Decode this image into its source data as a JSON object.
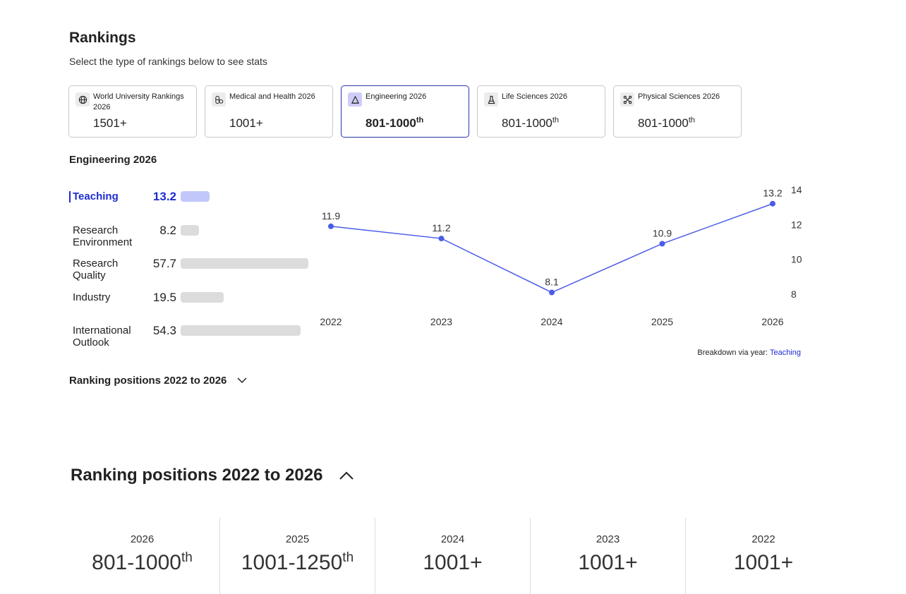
{
  "header": {
    "title": "Rankings",
    "subtitle": "Select the type of rankings below to see stats"
  },
  "cards": [
    {
      "name": "World University Rankings 2026",
      "value": "1501+",
      "sup": "",
      "icon": "globe-icon",
      "active": false
    },
    {
      "name": "Medical and Health 2026",
      "value": "1001+",
      "sup": "",
      "icon": "pill-icon",
      "active": false
    },
    {
      "name": "Engineering 2026",
      "value": "801-1000",
      "sup": "th",
      "icon": "triangle-ruler-icon",
      "active": true
    },
    {
      "name": "Life Sciences 2026",
      "value": "801-1000",
      "sup": "th",
      "icon": "flask-icon",
      "active": false
    },
    {
      "name": "Physical Sciences 2026",
      "value": "801-1000",
      "sup": "th",
      "icon": "atom-icon",
      "active": false
    }
  ],
  "section": {
    "title": "Engineering 2026"
  },
  "metrics": [
    {
      "label": "Teaching",
      "value": "13.2",
      "score": 13.2,
      "active": true
    },
    {
      "label": "Research\nEnvironment",
      "value": "8.2",
      "score": 8.2,
      "active": false
    },
    {
      "label": "Research\nQuality",
      "value": "57.7",
      "score": 57.7,
      "active": false
    },
    {
      "label": "Industry",
      "value": "19.5",
      "score": 19.5,
      "active": false
    },
    {
      "label": "International\nOutlook",
      "value": "54.3",
      "score": 54.3,
      "active": false
    }
  ],
  "chart_data": {
    "type": "line",
    "x": [
      "2022",
      "2023",
      "2024",
      "2025",
      "2026"
    ],
    "series": [
      {
        "values": [
          11.9,
          11.2,
          8.1,
          10.9,
          13.2
        ],
        "color": "#4a5ce8"
      }
    ],
    "point_labels": [
      "11.9",
      "11.2",
      "8.1",
      "10.9",
      "13.2"
    ],
    "yticks": [
      8,
      10,
      12,
      14
    ],
    "ylim": [
      7.5,
      14.5
    ],
    "yaxis_side": "right",
    "grid": false,
    "title": "",
    "xlabel": "",
    "ylabel": ""
  },
  "breakdown": {
    "prefix": "Breakdown via year: ",
    "link": "Teaching"
  },
  "toggle_small": {
    "label": "Ranking positions 2022 to 2026",
    "icon": "chevron-down-icon"
  },
  "toggle_big": {
    "label": "Ranking positions 2022 to 2026",
    "icon": "chevron-up-icon"
  },
  "positions": [
    {
      "year": "2026",
      "value": "801-1000",
      "sup": "th"
    },
    {
      "year": "2025",
      "value": "1001-1250",
      "sup": "th"
    },
    {
      "year": "2024",
      "value": "1001+",
      "sup": ""
    },
    {
      "year": "2023",
      "value": "1001+",
      "sup": ""
    },
    {
      "year": "2022",
      "value": "1001+",
      "sup": ""
    }
  ],
  "colors": {
    "accent": "#1d2ccf",
    "line": "#4a5ce8",
    "active_border": "#2a37a8",
    "bar_active": "#c2c7fb",
    "bar": "#dcdcdc"
  }
}
